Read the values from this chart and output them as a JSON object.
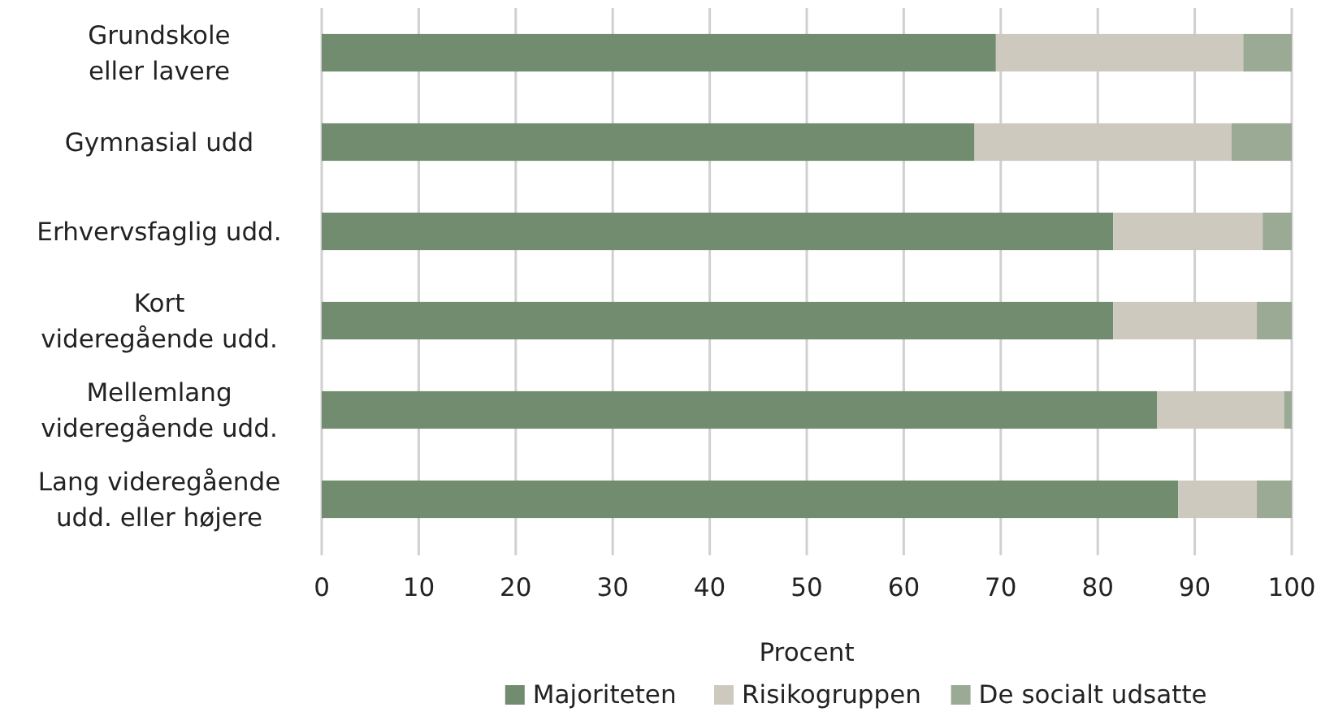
{
  "chart_data": {
    "type": "bar",
    "orientation": "horizontal",
    "stacked": true,
    "categories": [
      "Grundskole\neller lavere",
      "Gymnasial udd",
      "Erhvervsfaglig udd.",
      "Kort\nvideregående udd.",
      "Mellemlang\nvideregående udd.",
      "Lang videregående\nudd. eller højere"
    ],
    "series": [
      {
        "name": "Majoriteten",
        "color": "#718c6f",
        "values": [
          69.5,
          67.3,
          81.6,
          81.6,
          86.1,
          88.3
        ]
      },
      {
        "name": "Risikogruppen",
        "color": "#cdc9be",
        "values": [
          25.5,
          26.5,
          15.4,
          14.8,
          13.1,
          8.1
        ]
      },
      {
        "name": "De socialt udsatte",
        "color": "#9aaa94",
        "values": [
          5,
          6.2,
          3,
          3.6,
          0.8,
          3.6
        ]
      }
    ],
    "xlim": [
      0,
      100
    ],
    "xticks": [
      0,
      10,
      20,
      30,
      40,
      50,
      60,
      70,
      80,
      90,
      100
    ],
    "xlabel": "Procent",
    "grid": "x",
    "legend": "bottom"
  }
}
